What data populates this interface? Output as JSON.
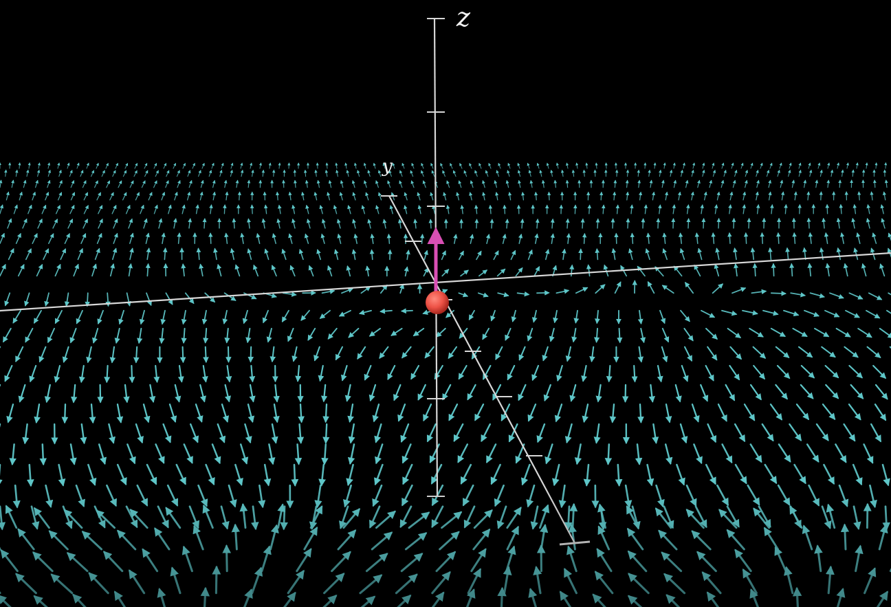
{
  "scene": {
    "background": "#000000",
    "axes": {
      "z_label": "z",
      "y_label": "y",
      "color": "#d8d8d8",
      "z_ticks": 5,
      "y_ticks": 4
    },
    "vector_field": {
      "color": "#5ec6c8",
      "description_type": "3d-vector-field"
    },
    "particle": {
      "color": "#ee5347",
      "velocity_arrow_color": "#d94fb4"
    }
  }
}
